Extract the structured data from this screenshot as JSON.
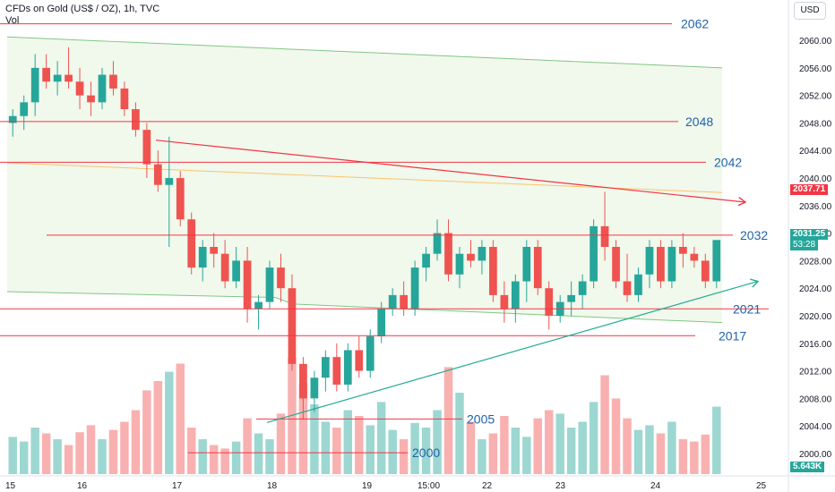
{
  "header": {
    "title": "CFDs on Gold (US$ / OZ), 1h, TVC",
    "vol_label": "Vol",
    "currency_button": "USD"
  },
  "price_tags": {
    "reference_price": "2037.71",
    "last_price": "2031.25",
    "countdown": "53:28",
    "volume": "5.643K"
  },
  "colors": {
    "up": "#26a69a",
    "down": "#ef5350",
    "level_line": "#f23645",
    "level_text": "#1e63a8",
    "trend_up": "#22ab94",
    "band_fill": "#f1f8ec",
    "band_edge": "#81c784",
    "mid_ma": "#ffb74d"
  },
  "chart_data": {
    "type": "candlestick",
    "title": "CFDs on Gold (US$ / OZ), 1h, TVC",
    "xlabel": "",
    "ylabel": "",
    "ylim": [
      1997,
      2063
    ],
    "y_ticks": [
      "2060.00",
      "2056.00",
      "2052.00",
      "2048.00",
      "2044.00",
      "2040.00",
      "2036.00",
      "2032.00",
      "2028.00",
      "2024.00",
      "2020.00",
      "2016.00",
      "2012.00",
      "2008.00",
      "2004.00",
      "2000.00"
    ],
    "x_ticks": [
      "15",
      "16",
      "17",
      "18",
      "19",
      "15:00",
      "22",
      "23",
      "24",
      "25"
    ],
    "levels": [
      {
        "label": "2062",
        "value": 2062.4
      },
      {
        "label": "2048",
        "value": 2048.2
      },
      {
        "label": "2042",
        "value": 2042.3
      },
      {
        "label": "2032",
        "value": 2031.7
      },
      {
        "label": "2021",
        "value": 2021.0
      },
      {
        "label": "2017",
        "value": 2017.1
      },
      {
        "label": "2005",
        "value": 2005.0
      },
      {
        "label": "2000",
        "value": 2000.1
      }
    ],
    "trendlines": [
      {
        "name": "resistance",
        "from": [
          0.0,
          2045.5
        ],
        "to": [
          1.0,
          2036.5
        ]
      },
      {
        "name": "support",
        "from": [
          0.0,
          2004.5
        ],
        "to": [
          1.0,
          2025.0
        ]
      }
    ],
    "candles": [
      [
        2048,
        2050,
        2046,
        2049
      ],
      [
        2049,
        2052,
        2047,
        2051
      ],
      [
        2051,
        2058,
        2049,
        2056
      ],
      [
        2056,
        2058,
        2053,
        2054
      ],
      [
        2054,
        2057,
        2052,
        2055
      ],
      [
        2055,
        2059,
        2053,
        2054
      ],
      [
        2054,
        2056,
        2050,
        2052
      ],
      [
        2052,
        2054,
        2049,
        2051
      ],
      [
        2051,
        2056,
        2050,
        2055
      ],
      [
        2055,
        2057,
        2052,
        2053
      ],
      [
        2053,
        2054,
        2049,
        2050
      ],
      [
        2050,
        2051,
        2046,
        2047
      ],
      [
        2047,
        2048,
        2040,
        2042
      ],
      [
        2042,
        2044,
        2038,
        2039
      ],
      [
        2039,
        2046,
        2030,
        2040
      ],
      [
        2040,
        2041,
        2033,
        2034
      ],
      [
        2034,
        2035,
        2026,
        2027
      ],
      [
        2027,
        2031,
        2025,
        2030
      ],
      [
        2030,
        2032,
        2027,
        2029
      ],
      [
        2029,
        2031,
        2024,
        2025
      ],
      [
        2025,
        2030,
        2024,
        2028
      ],
      [
        2028,
        2030,
        2019,
        2021
      ],
      [
        2021,
        2023,
        2018,
        2022
      ],
      [
        2022,
        2028,
        2021,
        2027
      ],
      [
        2027,
        2029,
        2022,
        2024
      ],
      [
        2024,
        2026,
        2012,
        2013
      ],
      [
        2013,
        2014,
        2005,
        2008
      ],
      [
        2008,
        2012,
        2006,
        2011
      ],
      [
        2011,
        2015,
        2009,
        2014
      ],
      [
        2014,
        2016,
        2009,
        2010
      ],
      [
        2010,
        2016,
        2009,
        2015
      ],
      [
        2015,
        2017,
        2011,
        2012
      ],
      [
        2012,
        2018,
        2011,
        2017
      ],
      [
        2017,
        2022,
        2016,
        2021
      ],
      [
        2021,
        2024,
        2020,
        2023
      ],
      [
        2023,
        2025,
        2020,
        2021
      ],
      [
        2021,
        2028,
        2020,
        2027
      ],
      [
        2027,
        2030,
        2025,
        2029
      ],
      [
        2029,
        2034,
        2028,
        2032
      ],
      [
        2032,
        2034,
        2025,
        2026
      ],
      [
        2026,
        2030,
        2024,
        2029
      ],
      [
        2029,
        2031,
        2027,
        2028
      ],
      [
        2028,
        2031,
        2026,
        2030
      ],
      [
        2030,
        2031,
        2022,
        2023
      ],
      [
        2023,
        2025,
        2019,
        2021
      ],
      [
        2021,
        2026,
        2019,
        2025
      ],
      [
        2025,
        2031,
        2022,
        2030
      ],
      [
        2030,
        2031,
        2023,
        2024
      ],
      [
        2024,
        2025,
        2018,
        2020
      ],
      [
        2020,
        2023,
        2019,
        2022
      ],
      [
        2022,
        2025,
        2020,
        2023
      ],
      [
        2023,
        2026,
        2021,
        2025
      ],
      [
        2025,
        2034,
        2024,
        2033
      ],
      [
        2033,
        2038,
        2028,
        2030
      ],
      [
        2030,
        2031,
        2024,
        2025
      ],
      [
        2025,
        2029,
        2022,
        2023
      ],
      [
        2023,
        2027,
        2022,
        2026
      ],
      [
        2026,
        2031,
        2024,
        2030
      ],
      [
        2030,
        2031,
        2024,
        2025
      ],
      [
        2025,
        2031,
        2024,
        2030
      ],
      [
        2030,
        2032,
        2027,
        2029
      ],
      [
        2029,
        2030,
        2027,
        2028
      ],
      [
        2028,
        2029,
        2024,
        2025
      ],
      [
        2025,
        2031,
        2024,
        2031
      ]
    ],
    "volumes": [
      0.32,
      0.28,
      0.4,
      0.35,
      0.3,
      0.25,
      0.36,
      0.42,
      0.3,
      0.38,
      0.45,
      0.55,
      0.72,
      0.8,
      0.88,
      0.95,
      0.4,
      0.3,
      0.25,
      0.22,
      0.28,
      0.48,
      0.35,
      0.3,
      0.52,
      1.0,
      0.78,
      0.6,
      0.45,
      0.4,
      0.55,
      0.5,
      0.42,
      0.62,
      0.38,
      0.3,
      0.44,
      0.4,
      0.55,
      0.92,
      0.7,
      0.45,
      0.3,
      0.35,
      0.5,
      0.4,
      0.32,
      0.48,
      0.55,
      0.52,
      0.4,
      0.45,
      0.62,
      0.85,
      0.65,
      0.48,
      0.38,
      0.42,
      0.35,
      0.45,
      0.3,
      0.28,
      0.34,
      0.58
    ]
  }
}
